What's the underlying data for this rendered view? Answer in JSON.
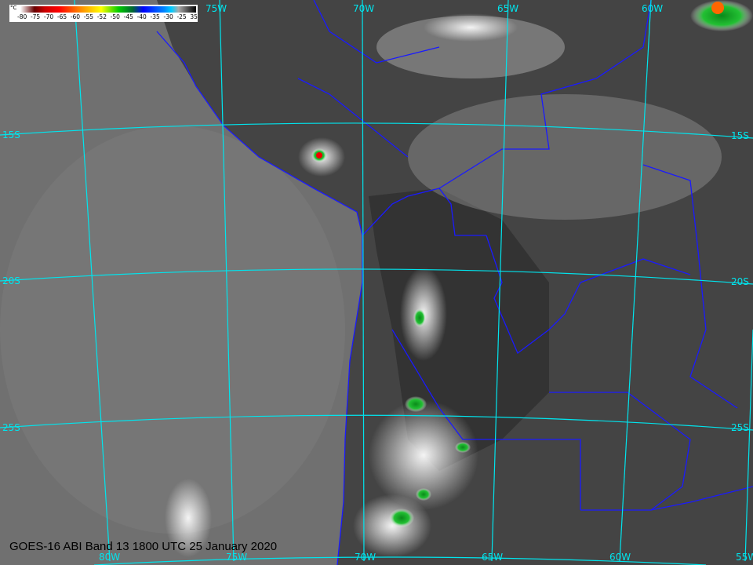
{
  "caption": "GOES-16 ABI Band 13 1800 UTC 25 January 2020",
  "legend": {
    "unit": "°C",
    "ticks": [
      "-80",
      "-75",
      "-70",
      "-65",
      "-60",
      "-55",
      "-52",
      "-50",
      "-45",
      "-40",
      "-35",
      "-30",
      "-25",
      "35"
    ]
  },
  "grid_labels": {
    "top": [
      "75W",
      "70W",
      "65W",
      "60W"
    ],
    "bottom": [
      "80W",
      "75W",
      "70W",
      "65W",
      "60W",
      "55W"
    ],
    "left": [
      "15S",
      "20S",
      "25S"
    ],
    "right": [
      "15S",
      "20S",
      "25S"
    ]
  },
  "colors": {
    "grid": "#00e5ee",
    "borders": "#1a1aff",
    "ocean": "#6e6e6e",
    "land": "#3a3a3a"
  }
}
